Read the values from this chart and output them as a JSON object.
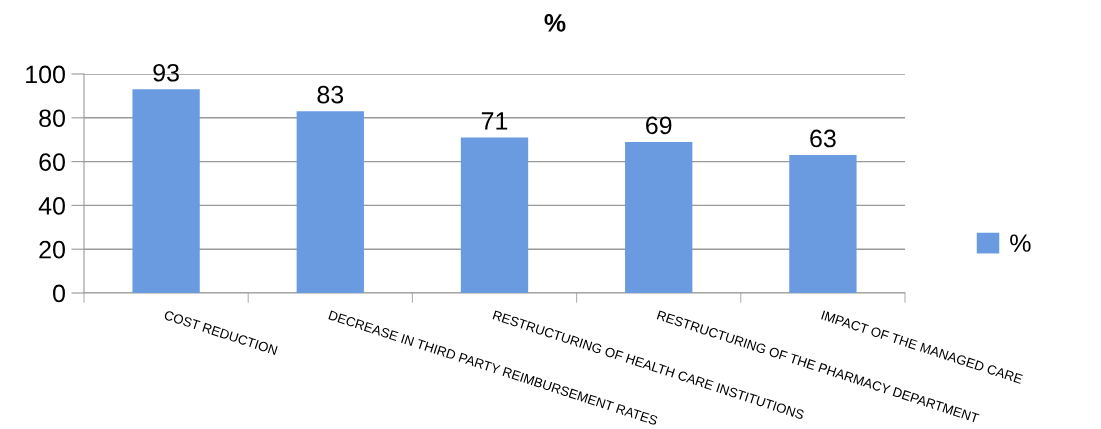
{
  "chart_data": {
    "type": "bar",
    "title": "%",
    "categories": [
      "COST REDUCTION",
      "DECREASE IN THIRD PARTY REIMBURSEMENT RATES",
      "RESTRUCTURING OF HEALTH CARE INSTITUTIONS",
      "RESTRUCTURING OF THE PHARMACY DEPARTMENT",
      "IMPACT OF THE MANAGED CARE"
    ],
    "series": [
      {
        "name": "%",
        "color": "#6a9be0",
        "values": [
          93,
          83,
          71,
          69,
          63
        ]
      }
    ],
    "ylim": [
      0,
      100
    ],
    "yticks": [
      0,
      20,
      40,
      60,
      80,
      100
    ],
    "grid": "y",
    "legend": "right",
    "data_labels": true
  }
}
